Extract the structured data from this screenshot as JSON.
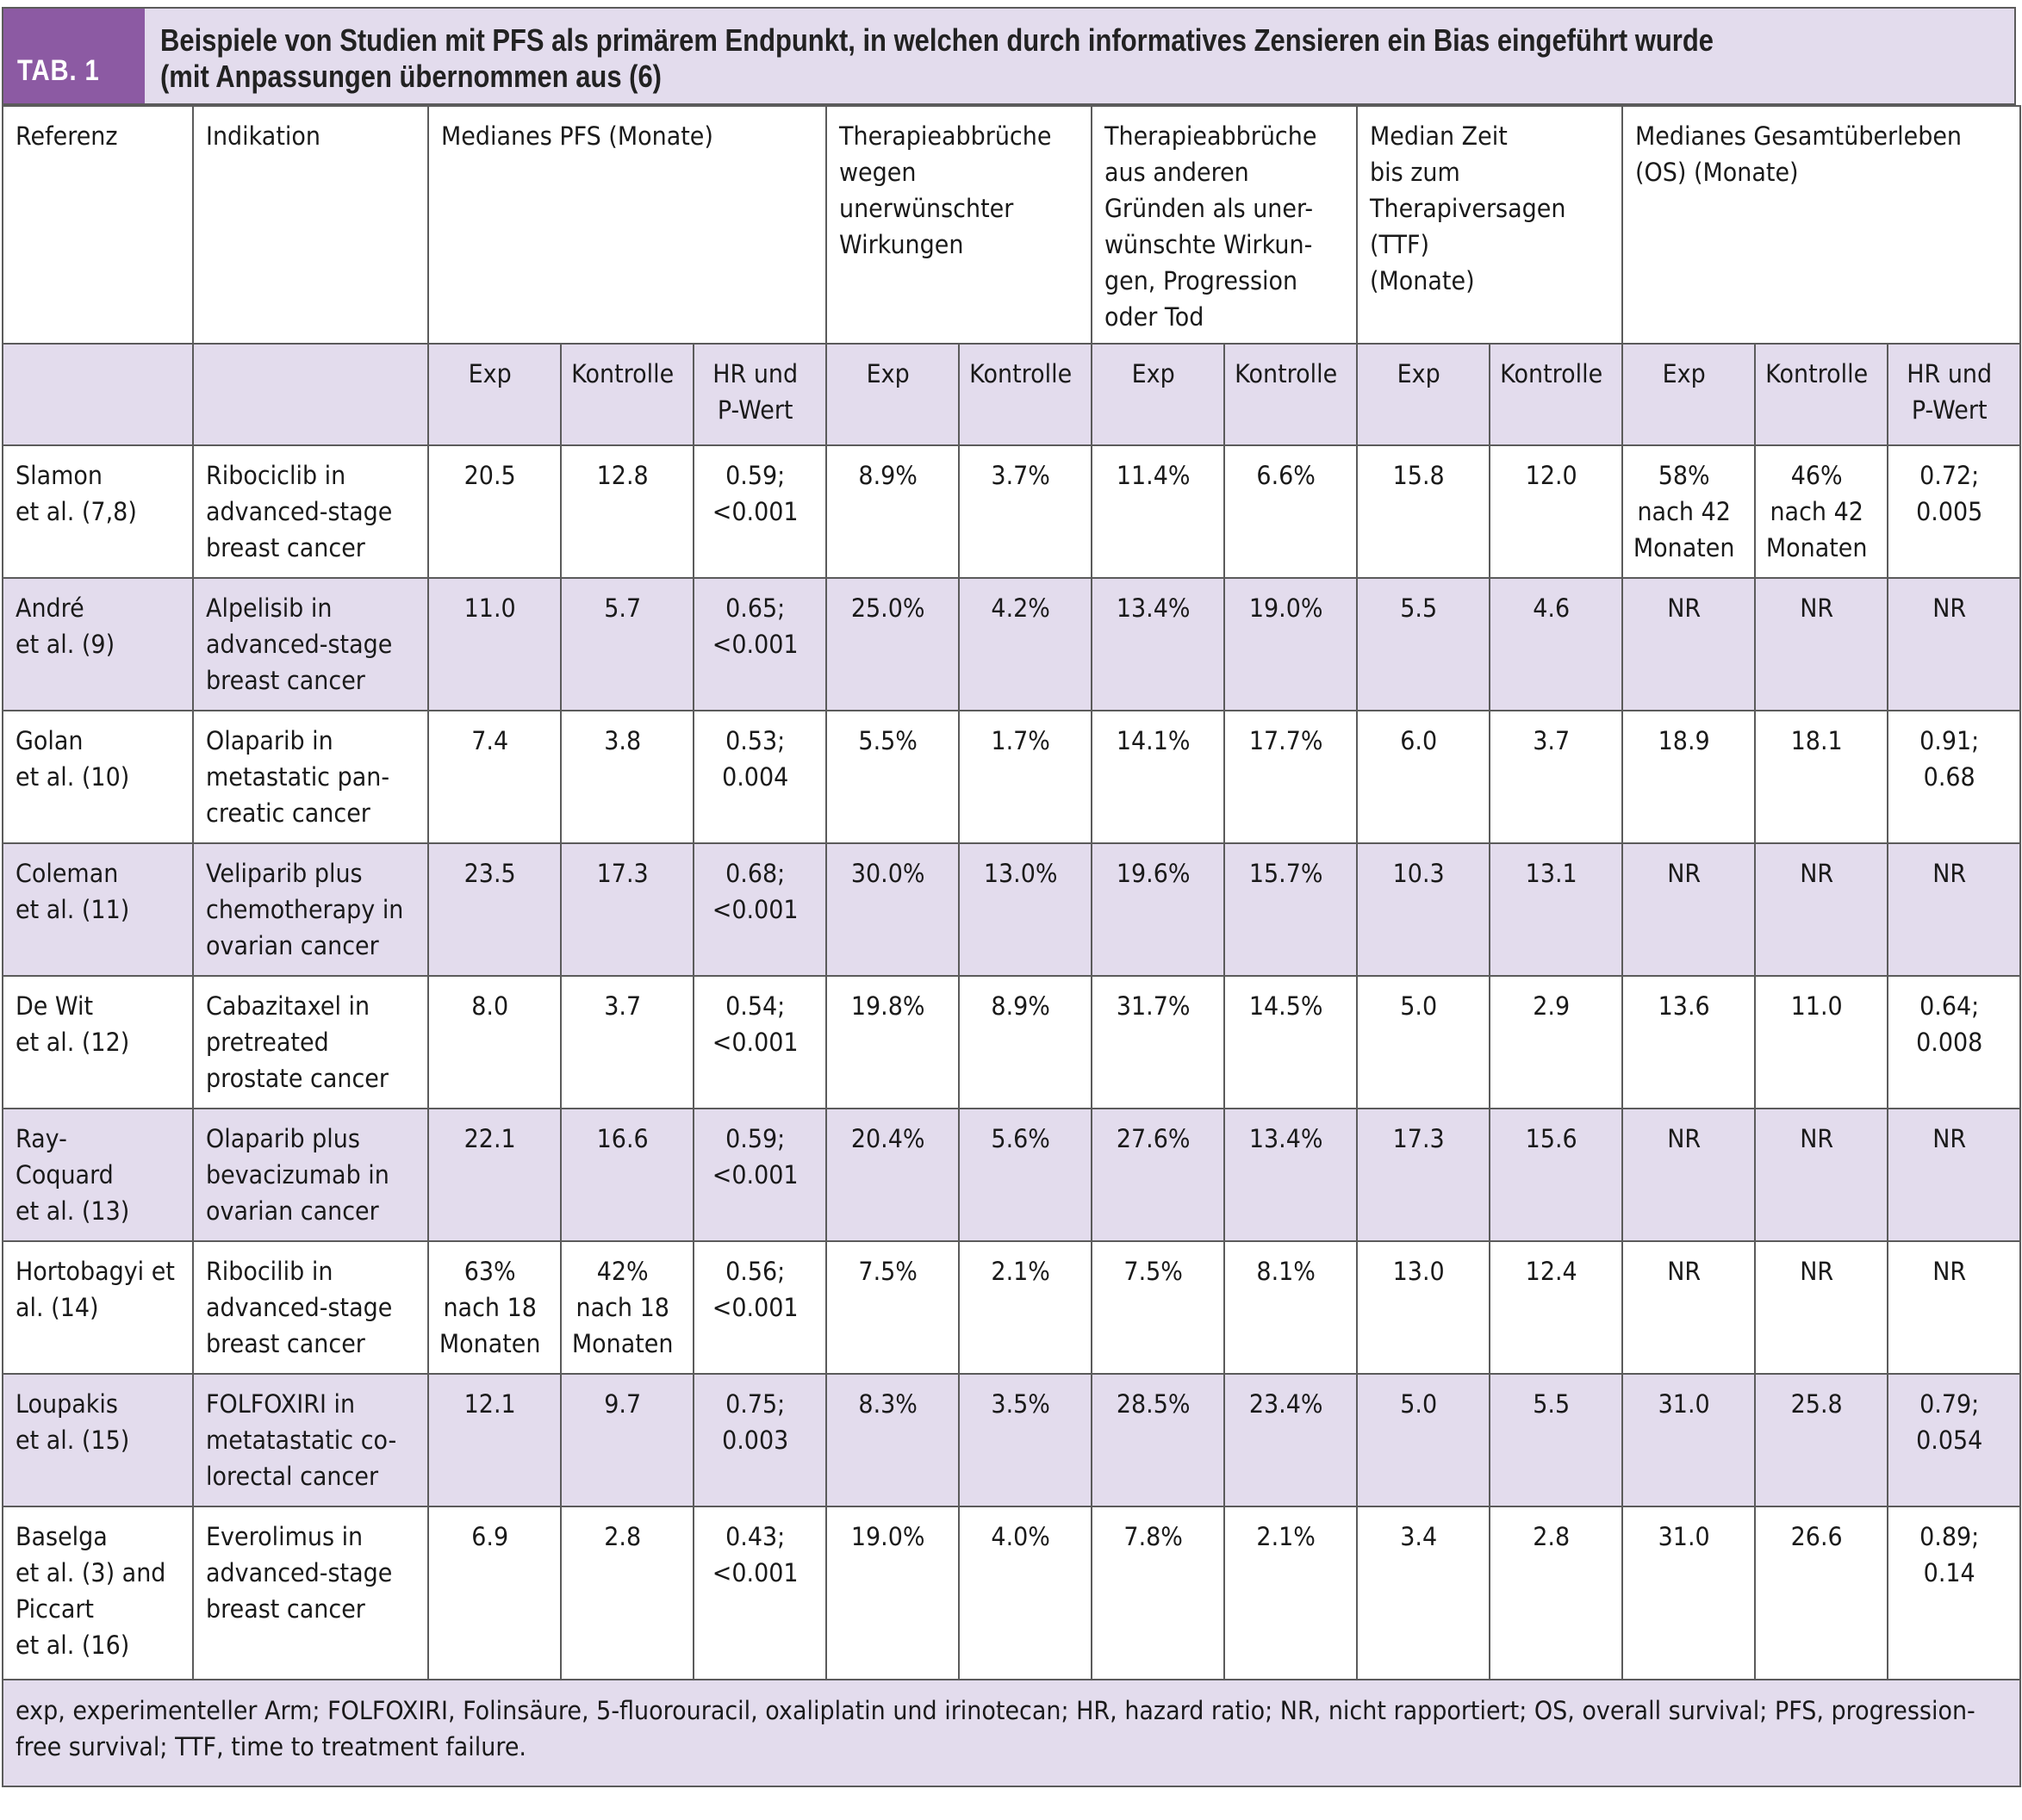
{
  "header": {
    "tab_label": "TAB. 1",
    "title_line1": "Beispiele von Studien mit PFS als primärem Endpunkt, in welchen durch informatives Zensieren ein Bias eingeführt wurde",
    "title_line2": "(mit Anpassungen übernommen aus (6)"
  },
  "columns": {
    "referenz": [
      "Referenz"
    ],
    "indikation": [
      "Indikation"
    ],
    "pfs": [
      "Medianes PFS (Monate)"
    ],
    "abbruch_uaw": [
      "Therapieabbrüche",
      "wegen",
      "unerwünschter",
      "Wirkungen"
    ],
    "abbruch_andere": [
      "Therapieabbrüche",
      "aus anderen",
      "Gründen als uner-",
      "wünschte Wirkun-",
      "gen, Progression",
      "oder Tod"
    ],
    "ttf": [
      "Median Zeit",
      "bis zum",
      "Therapiversagen",
      "(TTF)",
      "(Monate)"
    ],
    "os": [
      "Medianes Gesamtüberleben",
      " (OS) (Monate)"
    ]
  },
  "subheaders": [
    [],
    [],
    [
      "Exp"
    ],
    [
      "Kontrolle"
    ],
    [
      "HR und",
      "P-Wert"
    ],
    [
      "Exp"
    ],
    [
      "Kontrolle"
    ],
    [
      "Exp"
    ],
    [
      "Kontrolle"
    ],
    [
      "Exp"
    ],
    [
      "Kontrolle"
    ],
    [
      "Exp"
    ],
    [
      "Kontrolle"
    ],
    [
      "HR und",
      "P-Wert"
    ]
  ],
  "rows": [
    {
      "ref": [
        "Slamon",
        "et al. (7,8)"
      ],
      "ind": [
        "Ribociclib in",
        "advanced-stage",
        "breast cancer"
      ],
      "vals": [
        [
          "20.5"
        ],
        [
          "12.8"
        ],
        [
          "0.59;",
          "<0.001"
        ],
        [
          "8.9%"
        ],
        [
          "3.7%"
        ],
        [
          "11.4%"
        ],
        [
          "6.6%"
        ],
        [
          "15.8"
        ],
        [
          "12.0"
        ],
        [
          "58%",
          "nach 42",
          "Monaten"
        ],
        [
          "46%",
          "nach 42",
          "Monaten"
        ],
        [
          "0.72;",
          "0.005"
        ]
      ]
    },
    {
      "ref": [
        "André",
        "et al. (9)"
      ],
      "ind": [
        "Alpelisib in",
        "advanced-stage",
        "breast cancer"
      ],
      "vals": [
        [
          "11.0"
        ],
        [
          "5.7"
        ],
        [
          "0.65;",
          "<0.001"
        ],
        [
          "25.0%"
        ],
        [
          "4.2%"
        ],
        [
          "13.4%"
        ],
        [
          "19.0%"
        ],
        [
          "5.5"
        ],
        [
          "4.6"
        ],
        [
          "NR"
        ],
        [
          "NR"
        ],
        [
          "NR"
        ]
      ]
    },
    {
      "ref": [
        "Golan",
        "et al. (10)"
      ],
      "ind": [
        "Olaparib in",
        "metastatic pan-",
        "creatic cancer"
      ],
      "vals": [
        [
          "7.4"
        ],
        [
          "3.8"
        ],
        [
          "0.53;",
          "0.004"
        ],
        [
          "5.5%"
        ],
        [
          "1.7%"
        ],
        [
          "14.1%"
        ],
        [
          "17.7%"
        ],
        [
          "6.0"
        ],
        [
          "3.7"
        ],
        [
          "18.9"
        ],
        [
          "18.1"
        ],
        [
          "0.91;",
          "0.68"
        ]
      ]
    },
    {
      "ref": [
        "Coleman",
        "et al. (11)"
      ],
      "ind": [
        "Veliparib plus",
        "chemotherapy in",
        "ovarian cancer"
      ],
      "vals": [
        [
          "23.5"
        ],
        [
          "17.3"
        ],
        [
          "0.68;",
          "<0.001"
        ],
        [
          "30.0%"
        ],
        [
          "13.0%"
        ],
        [
          "19.6%"
        ],
        [
          "15.7%"
        ],
        [
          "10.3"
        ],
        [
          "13.1"
        ],
        [
          "NR"
        ],
        [
          "NR"
        ],
        [
          "NR"
        ]
      ]
    },
    {
      "ref": [
        "De Wit",
        "et al. (12)"
      ],
      "ind": [
        "Cabazitaxel in",
        "pretreated",
        "prostate cancer"
      ],
      "vals": [
        [
          "8.0"
        ],
        [
          "3.7"
        ],
        [
          "0.54;",
          "<0.001"
        ],
        [
          "19.8%"
        ],
        [
          "8.9%"
        ],
        [
          "31.7%"
        ],
        [
          "14.5%"
        ],
        [
          "5.0"
        ],
        [
          "2.9"
        ],
        [
          "13.6"
        ],
        [
          "11.0"
        ],
        [
          "0.64;",
          "0.008"
        ]
      ]
    },
    {
      "ref": [
        "Ray-",
        "Coquard",
        "et al. (13)"
      ],
      "ind": [
        "Olaparib plus",
        "bevacizumab in",
        "ovarian cancer"
      ],
      "vals": [
        [
          "22.1"
        ],
        [
          "16.6"
        ],
        [
          "0.59;",
          "<0.001"
        ],
        [
          "20.4%"
        ],
        [
          "5.6%"
        ],
        [
          "27.6%"
        ],
        [
          "13.4%"
        ],
        [
          "17.3"
        ],
        [
          "15.6"
        ],
        [
          "NR"
        ],
        [
          "NR"
        ],
        [
          "NR"
        ]
      ]
    },
    {
      "ref": [
        "Hortobagyi et",
        "al. (14)"
      ],
      "ind": [
        "Ribocilib in",
        "advanced-stage",
        "breast cancer"
      ],
      "vals": [
        [
          "63%",
          "nach 18",
          "Monaten"
        ],
        [
          "42%",
          "nach 18",
          "Monaten"
        ],
        [
          "0.56;",
          "<0.001"
        ],
        [
          "7.5%"
        ],
        [
          "2.1%"
        ],
        [
          "7.5%"
        ],
        [
          "8.1%"
        ],
        [
          "13.0"
        ],
        [
          "12.4"
        ],
        [
          "NR"
        ],
        [
          "NR"
        ],
        [
          "NR"
        ]
      ]
    },
    {
      "ref": [
        "Loupakis",
        "et al. (15)"
      ],
      "ind": [
        "FOLFOXIRI in",
        "metatastatic co-",
        "lorectal cancer"
      ],
      "vals": [
        [
          "12.1"
        ],
        [
          "9.7"
        ],
        [
          "0.75;",
          "0.003"
        ],
        [
          "8.3%"
        ],
        [
          "3.5%"
        ],
        [
          "28.5%"
        ],
        [
          "23.4%"
        ],
        [
          "5.0"
        ],
        [
          "5.5"
        ],
        [
          "31.0"
        ],
        [
          "25.8"
        ],
        [
          "0.79;",
          "0.054"
        ]
      ]
    },
    {
      "ref": [
        "Baselga",
        "et al. (3) and",
        "Piccart",
        "et al. (16)"
      ],
      "ind": [
        "Everolimus in",
        "advanced-stage",
        "breast cancer"
      ],
      "vals": [
        [
          "6.9"
        ],
        [
          "2.8"
        ],
        [
          "0.43;",
          "<0.001"
        ],
        [
          "19.0%"
        ],
        [
          "4.0%"
        ],
        [
          "7.8%"
        ],
        [
          "2.1%"
        ],
        [
          "3.4"
        ],
        [
          "2.8"
        ],
        [
          "31.0"
        ],
        [
          "26.6"
        ],
        [
          "0.89;",
          "0.14"
        ]
      ]
    }
  ],
  "footnote": "exp, experimenteller Arm; FOLFOXIRI, Folinsäure, 5-fluorouracil, oxaliplatin und irinotecan; HR, hazard ratio; NR, nicht rapportiert; OS, overall survival; PFS, progression-free survival; TTF, time to treatment failure.",
  "colors": {
    "accent": "#8c5aa3",
    "shade": "#e3dced",
    "border": "#5b5b5b"
  }
}
